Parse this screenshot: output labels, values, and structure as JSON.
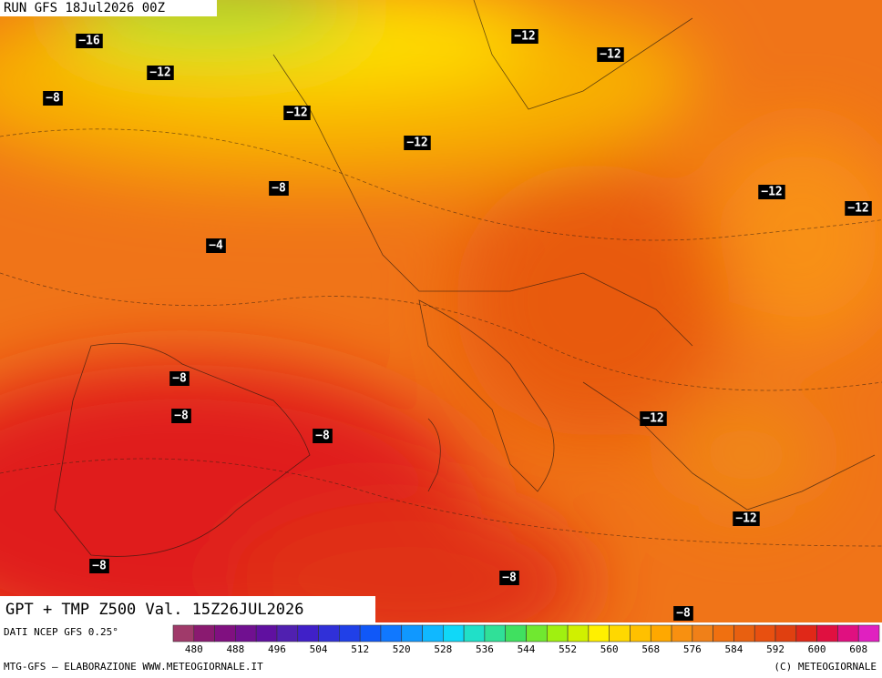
{
  "header": {
    "run": "RUN GFS 18Jul2026 00Z"
  },
  "map": {
    "labels": [
      "−16",
      "−12",
      "−8",
      "−12",
      "−12",
      "−12",
      "−12",
      "−8",
      "−12",
      "−12",
      "−4",
      "−8",
      "−8",
      "−8",
      "−12",
      "−12",
      "−8",
      "−8",
      "−8"
    ]
  },
  "title": "GPT + TMP Z500 Val. 15Z26JUL2026",
  "colorbar": {
    "source": "DATI NCEP GFS 0.25°",
    "ticks": [
      480,
      488,
      496,
      504,
      512,
      520,
      528,
      536,
      544,
      552,
      560,
      568,
      576,
      584,
      592,
      600,
      608
    ],
    "colors": [
      "#a03a6a",
      "#8a1a70",
      "#801080",
      "#701090",
      "#6010a0",
      "#5020b0",
      "#4020c8",
      "#3030d8",
      "#2040e8",
      "#1058f8",
      "#1078ff",
      "#1098ff",
      "#10b8ff",
      "#10d8f8",
      "#20e0c8",
      "#30e098",
      "#40e060",
      "#70e830",
      "#a0f010",
      "#d0f000",
      "#fff000",
      "#ffd800",
      "#ffc000",
      "#ffa800",
      "#f89010",
      "#f08018",
      "#f07010",
      "#e86010",
      "#e85010",
      "#e04010",
      "#e02818",
      "#e01040",
      "#e01080",
      "#e020c0"
    ]
  },
  "footer": {
    "left": "MTG-GFS – ELABORAZIONE WWW.METEOGIORNALE.IT",
    "right": "(C) METEOGIORNALE"
  }
}
